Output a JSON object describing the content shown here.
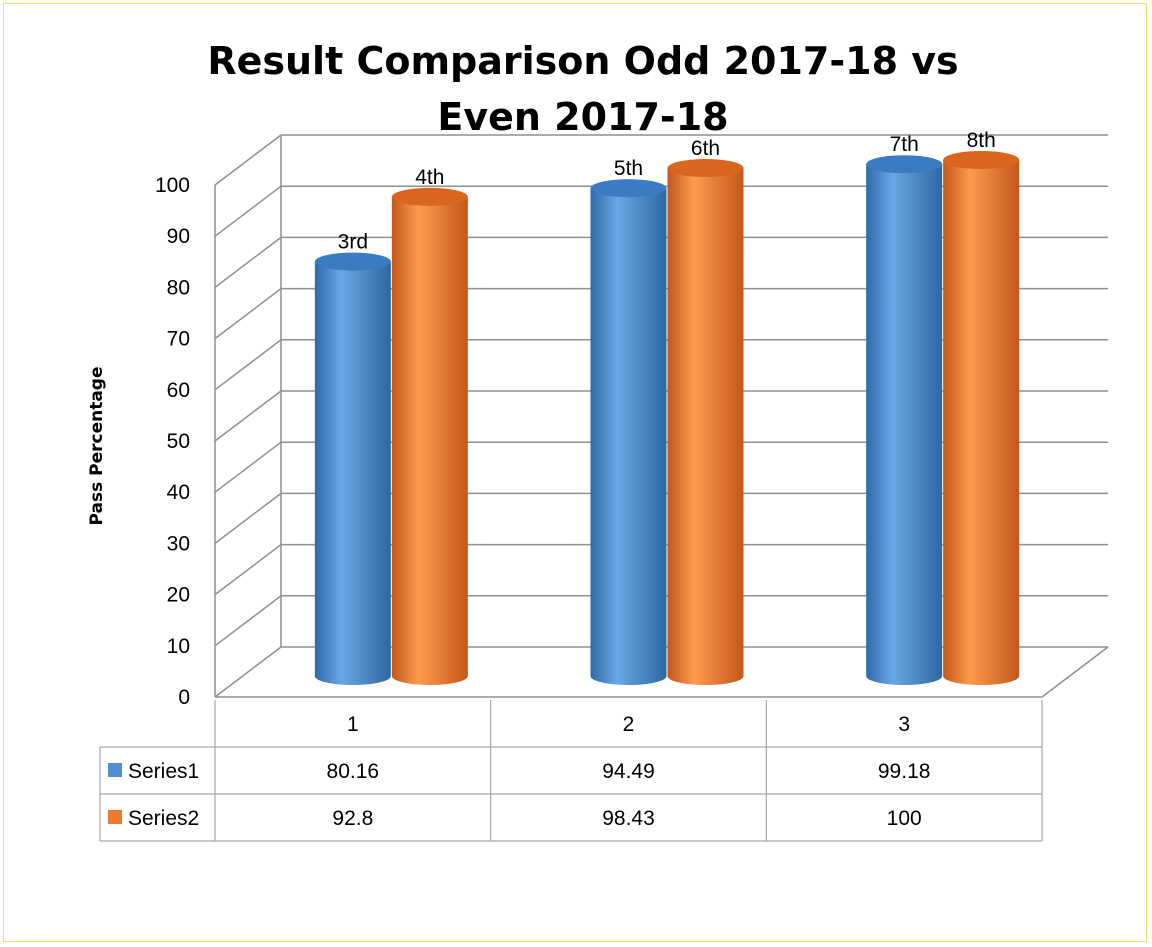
{
  "chart_data": {
    "type": "bar",
    "style": "3d-cylinder",
    "title": "Result Comparison Odd 2017-18 vs Even 2017-18",
    "title_lines": [
      "Result Comparison Odd 2017-18 vs",
      "Even 2017-18"
    ],
    "ylabel": "Pass Percentage",
    "xlabel": "",
    "ylim": [
      0,
      100
    ],
    "yticks": [
      0,
      10,
      20,
      30,
      40,
      50,
      60,
      70,
      80,
      90,
      100
    ],
    "grid": true,
    "categories": [
      "1",
      "2",
      "3"
    ],
    "series": [
      {
        "name": "Series1",
        "color": "#4e8fd1",
        "values": [
          80.16,
          94.49,
          99.18
        ],
        "labels": [
          "3rd",
          "5th",
          "7th"
        ]
      },
      {
        "name": "Series2",
        "color": "#ee7b2c",
        "values": [
          92.8,
          98.43,
          100
        ],
        "labels": [
          "4th",
          "6th",
          "8th"
        ]
      }
    ],
    "legend": "data-table"
  }
}
